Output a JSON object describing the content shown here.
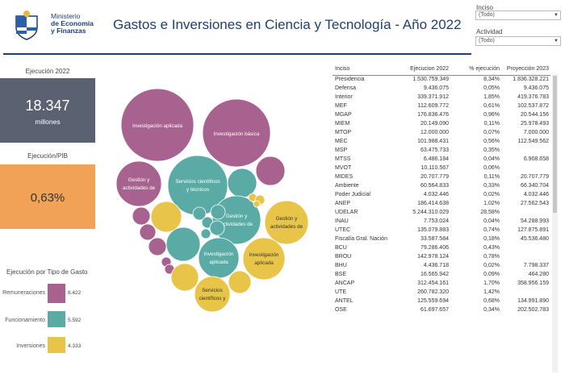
{
  "logo": {
    "line1": "Ministerio",
    "line2": "de Economía",
    "line3": "y Finanzas"
  },
  "title": "Gastos e Inversiones en Ciencia y Tecnología - Año 2022",
  "filters": {
    "inciso": {
      "label": "Inciso",
      "value": "(Todo)"
    },
    "actividad": {
      "label": "Actividad",
      "value": "(Todo)"
    }
  },
  "kpis": {
    "ejecucion": {
      "title": "Ejecución 2022",
      "value": "18.347",
      "unit": "millones",
      "color": "#5a6170"
    },
    "pib": {
      "title": "Ejecución/PIB",
      "value": "0,63%",
      "color": "#f1a257"
    }
  },
  "gasto": {
    "title": "Ejecución por Tipo de Gasto",
    "items": [
      {
        "label": "Remuneraciones",
        "value": "8.422",
        "color": "#a8628f"
      },
      {
        "label": "Funcionamiento",
        "value": "5.592",
        "color": "#5aaba5"
      },
      {
        "label": "Inversiones",
        "value": "4.333",
        "color": "#e8c548"
      }
    ]
  },
  "bubbles": {
    "colors": {
      "purple": "#a8628f",
      "teal": "#5aaba5",
      "yellow": "#e8c548"
    },
    "labels": [
      {
        "l1": "Investigación aplicada",
        "l2": ""
      },
      {
        "l1": "Investigación básica",
        "l2": ""
      },
      {
        "l1": "Gestión y",
        "l2": "actividades de"
      },
      {
        "l1": "Servicios científicos",
        "l2": "y técnicos"
      },
      {
        "l1": "Gestión y",
        "l2": "actividades de"
      },
      {
        "l1": "Gestión y",
        "l2": "actividades de"
      },
      {
        "l1": "Investigación",
        "l2": "aplicada"
      },
      {
        "l1": "Investigación",
        "l2": "aplicada"
      },
      {
        "l1": "Servicios",
        "l2": "científicos y"
      }
    ]
  },
  "table": {
    "headers": [
      "Inciso",
      "Ejecucion 2022",
      "% ejecución",
      "Proyección 2023"
    ],
    "rows": [
      [
        "Presidencia",
        "1.530.759.349",
        "8,34%",
        "1.836.328.221"
      ],
      [
        "Defensa",
        "9.436.075",
        "0,05%",
        "9.436.075"
      ],
      [
        "Interior",
        "339.371.912",
        "1,85%",
        "419.376.783"
      ],
      [
        "MEF",
        "112.609.772",
        "0,61%",
        "102.537.872"
      ],
      [
        "MGAP",
        "176.836.476",
        "0,96%",
        "20.544.156"
      ],
      [
        "MIEM",
        "20.149.090",
        "0,11%",
        "25.978.493"
      ],
      [
        "MTOP",
        "12.000.000",
        "0,07%",
        "7.000.000"
      ],
      [
        "MEC",
        "101.988.431",
        "0,56%",
        "112.549.562"
      ],
      [
        "MSP",
        "63.475.733",
        "0,35%",
        ""
      ],
      [
        "MTSS",
        "6.486.184",
        "0,04%",
        "6.908.658"
      ],
      [
        "MVOT",
        "10.110.567",
        "0,06%",
        ""
      ],
      [
        "MIDES",
        "20.707.779",
        "0,11%",
        "20.707.779"
      ],
      [
        "Ambiente",
        "60.564.833",
        "0,33%",
        "66.340.704"
      ],
      [
        "Poder Judicial",
        "4.032.446",
        "0,02%",
        "4.032.446"
      ],
      [
        "ANEP",
        "186.414.638",
        "1,02%",
        "27.562.543"
      ],
      [
        "UDELAR",
        "5.244.310.029",
        "28,58%",
        ""
      ],
      [
        "INAU",
        "7.753.024",
        "0,04%",
        "54.288.993"
      ],
      [
        "UTEC",
        "135.079.883",
        "0,74%",
        "127.875.891"
      ],
      [
        "Fiscalía Gral. Nación",
        "33.587.584",
        "0,18%",
        "45.536.480"
      ],
      [
        "BCU",
        "79.286.406",
        "0,43%",
        ""
      ],
      [
        "BROU",
        "142.978.124",
        "0,78%",
        ""
      ],
      [
        "BHU",
        "4.436.718",
        "0,02%",
        "7.798.337"
      ],
      [
        "BSE",
        "16.565.942",
        "0,09%",
        "464.280"
      ],
      [
        "ANCAP",
        "312.454.161",
        "1,70%",
        "358.956.159"
      ],
      [
        "UTE",
        "260.782.320",
        "1,42%",
        ""
      ],
      [
        "ANTEL",
        "125.559.694",
        "0,68%",
        "134.991.890"
      ],
      [
        "OSE",
        "61.697.657",
        "0,34%",
        "202.502.783"
      ]
    ]
  }
}
